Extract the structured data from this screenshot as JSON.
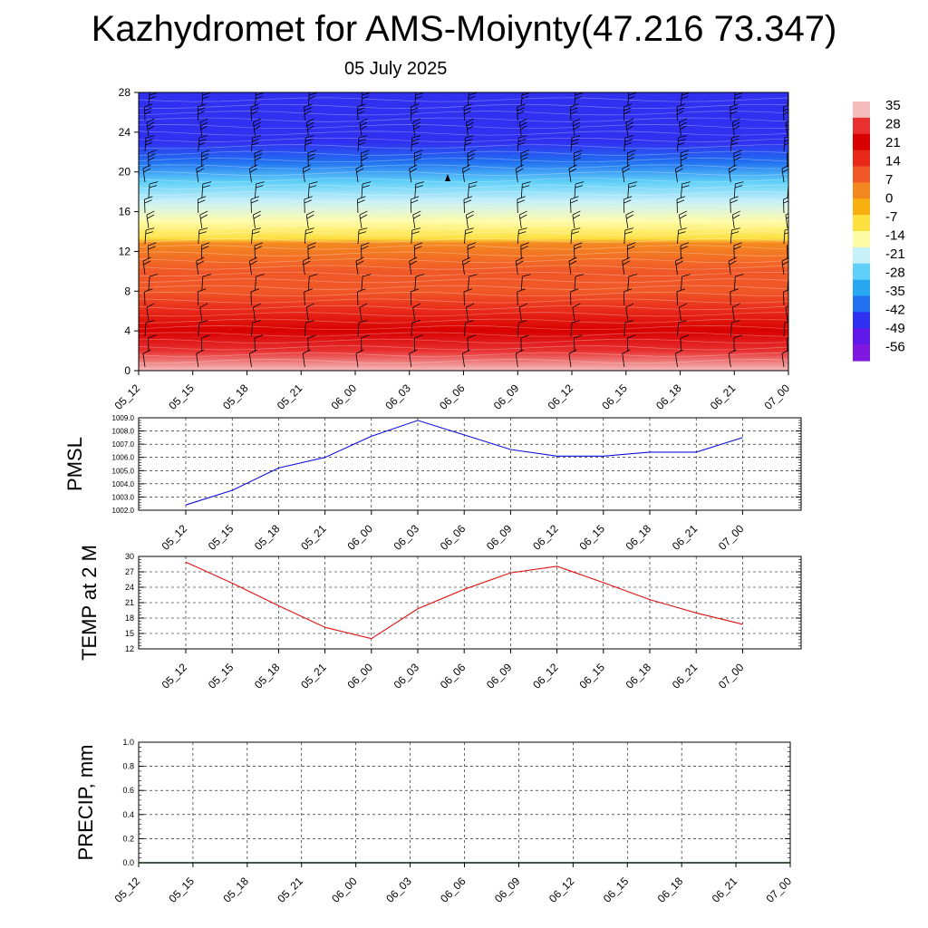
{
  "title": "Kazhydromet for AMS-Moiynty(47.216 73.347)",
  "date": "05 July 2025",
  "chart_data": [
    {
      "type": "heatmap",
      "x_ticks": [
        "05_12",
        "05_15",
        "05_18",
        "05_21",
        "06_00",
        "06_03",
        "06_06",
        "06_09",
        "06_12",
        "06_15",
        "06_18",
        "06_21",
        "07_00"
      ],
      "y_ticks": [
        "0",
        "4",
        "8",
        "12",
        "16",
        "20",
        "24",
        "28"
      ],
      "ylim": [
        0,
        28
      ],
      "colorbar_labels": [
        "35",
        "28",
        "21",
        "14",
        "7",
        "0",
        "-7",
        "-14",
        "-21",
        "-28",
        "-35",
        "-42",
        "-49",
        "-56"
      ],
      "colorbar_colors": [
        "#f4bcbc",
        "#e83030",
        "#d80000",
        "#e82818",
        "#f05828",
        "#f48820",
        "#f8b010",
        "#fce040",
        "#fffca8",
        "#c8f0f8",
        "#60d0f8",
        "#28a8f0",
        "#2070f0",
        "#3030f0",
        "#6018e8",
        "#8018e0"
      ],
      "profile": [
        {
          "h": 0,
          "t": 32
        },
        {
          "h": 2,
          "t": 24
        },
        {
          "h": 4,
          "t": 18
        },
        {
          "h": 6,
          "t": 12
        },
        {
          "h": 8,
          "t": 7
        },
        {
          "h": 10,
          "t": 3
        },
        {
          "h": 12.8,
          "t": -2
        },
        {
          "h": 13.3,
          "t": -14
        },
        {
          "h": 15,
          "t": -22
        },
        {
          "h": 17,
          "t": -30
        },
        {
          "h": 19,
          "t": -38
        },
        {
          "h": 21,
          "t": -49
        },
        {
          "h": 23,
          "t": -54
        },
        {
          "h": 25,
          "t": -58
        },
        {
          "h": 28,
          "t": -60
        }
      ]
    },
    {
      "type": "line",
      "ylabel": "PMSL",
      "x": [
        "05_12",
        "05_15",
        "05_18",
        "05_21",
        "06_00",
        "06_03",
        "06_06",
        "06_09",
        "06_12",
        "06_15",
        "06_18",
        "06_21",
        "07_00"
      ],
      "values": [
        1002.4,
        1003.5,
        1005.2,
        1006.0,
        1007.6,
        1008.8,
        1007.7,
        1006.6,
        1006.1,
        1006.1,
        1006.4,
        1006.4,
        1007.5
      ],
      "ylim": [
        1002.0,
        1009.0
      ],
      "y_ticks": [
        "1002.0",
        "1003.0",
        "1004.0",
        "1005.0",
        "1006.0",
        "1007.0",
        "1008.0",
        "1009.0"
      ],
      "color": "#1010e0"
    },
    {
      "type": "line",
      "ylabel": "TEMP at 2 M",
      "x": [
        "05_12",
        "05_15",
        "05_18",
        "05_21",
        "06_00",
        "06_03",
        "06_06",
        "06_09",
        "06_12",
        "06_15",
        "06_18",
        "06_21",
        "07_00"
      ],
      "values": [
        28.9,
        24.8,
        20.4,
        16.2,
        14.0,
        19.8,
        23.6,
        26.8,
        28.1,
        24.9,
        21.6,
        19.0,
        16.8
      ],
      "ylim": [
        12,
        30
      ],
      "y_ticks": [
        "12",
        "15",
        "18",
        "21",
        "24",
        "27",
        "30"
      ],
      "color": "#e01010"
    },
    {
      "type": "line",
      "ylabel": "PRECIP, mm",
      "x_ticks": [
        "05_12",
        "05_15",
        "05_18",
        "05_21",
        "06_00",
        "06_03",
        "06_06",
        "06_09",
        "06_12",
        "06_15",
        "06_18",
        "06_21",
        "07_00"
      ],
      "values": [
        0,
        0,
        0,
        0,
        0,
        0,
        0,
        0,
        0,
        0,
        0,
        0,
        0
      ],
      "ylim": [
        0.0,
        1.0
      ],
      "y_ticks": [
        "0.0",
        "0.2",
        "0.4",
        "0.6",
        "0.8",
        "1.0"
      ],
      "color": "#106010"
    }
  ]
}
